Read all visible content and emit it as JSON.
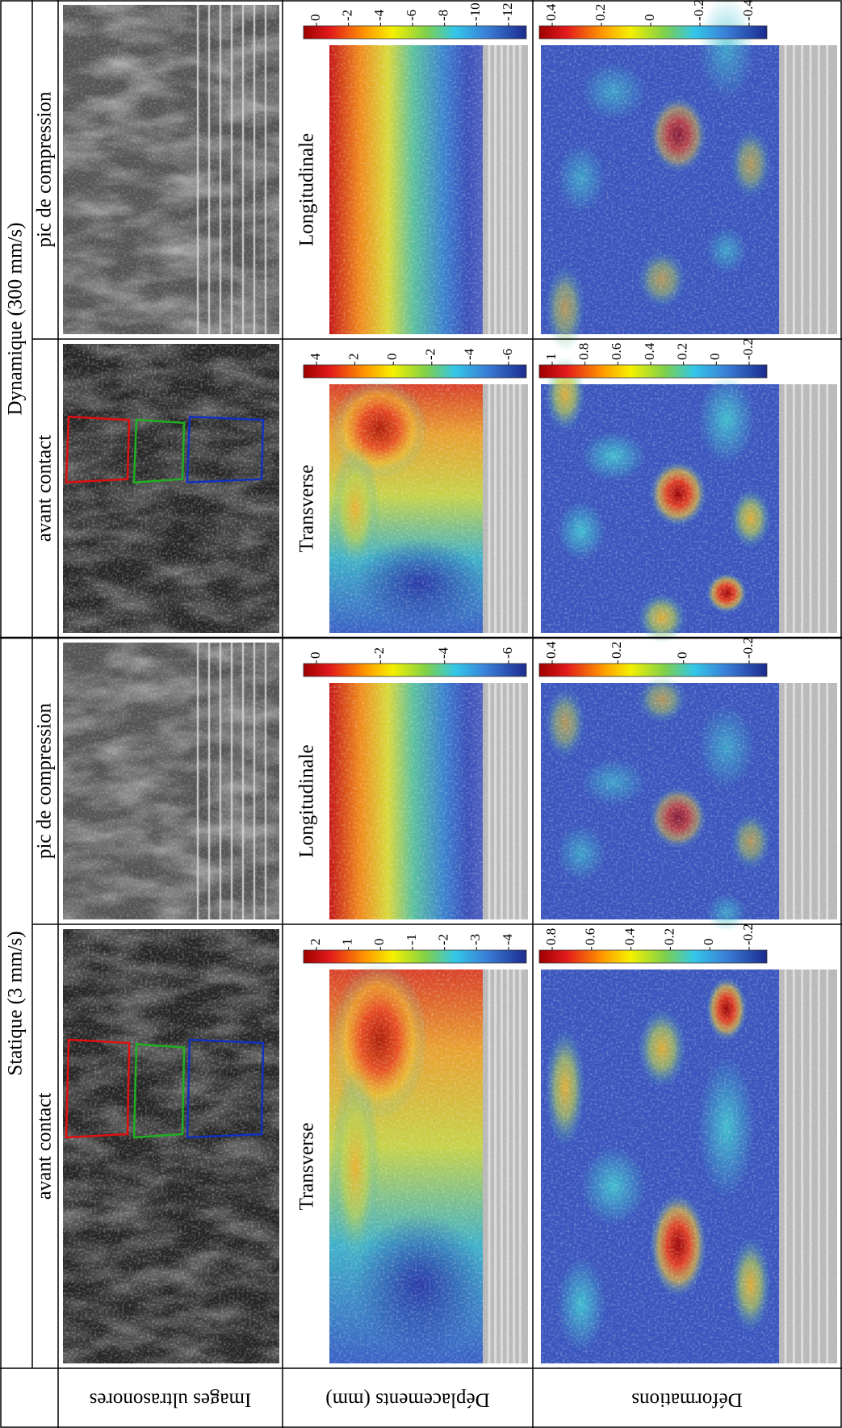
{
  "header": {
    "statique": "Statique (3 mm/s)",
    "dynamique": "Dynamique (300 mm/s)"
  },
  "row_labels": [
    "Images ultrasonores",
    "Déplacements (mm)",
    "Déformations"
  ],
  "columns": [
    {
      "phase": "avant contact",
      "direction": "Transverse",
      "displacement_ticks": [
        2,
        1,
        0,
        -1,
        -2,
        -3,
        -4
      ],
      "strain_ticks": [
        0.8,
        0.6,
        0.4,
        0.2,
        0,
        -0.2
      ]
    },
    {
      "phase": "pic de compression",
      "direction": "Longitudinale",
      "displacement_ticks": [
        0,
        -2,
        -4,
        -6
      ],
      "strain_ticks": [
        0.4,
        0.2,
        0,
        -0.2
      ]
    },
    {
      "phase": "avant contact",
      "direction": "Transverse",
      "displacement_ticks": [
        4,
        2,
        0,
        -2,
        -4,
        -6
      ],
      "strain_ticks": [
        1,
        0.8,
        0.6,
        0.4,
        0.2,
        0,
        -0.2
      ]
    },
    {
      "phase": "pic de compression",
      "direction": "Longitudinale",
      "displacement_ticks": [
        0,
        -2,
        -4,
        -6,
        -8,
        -10,
        -12
      ],
      "strain_ticks": [
        0.4,
        0.2,
        0,
        -0.2,
        -0.4
      ]
    }
  ]
}
